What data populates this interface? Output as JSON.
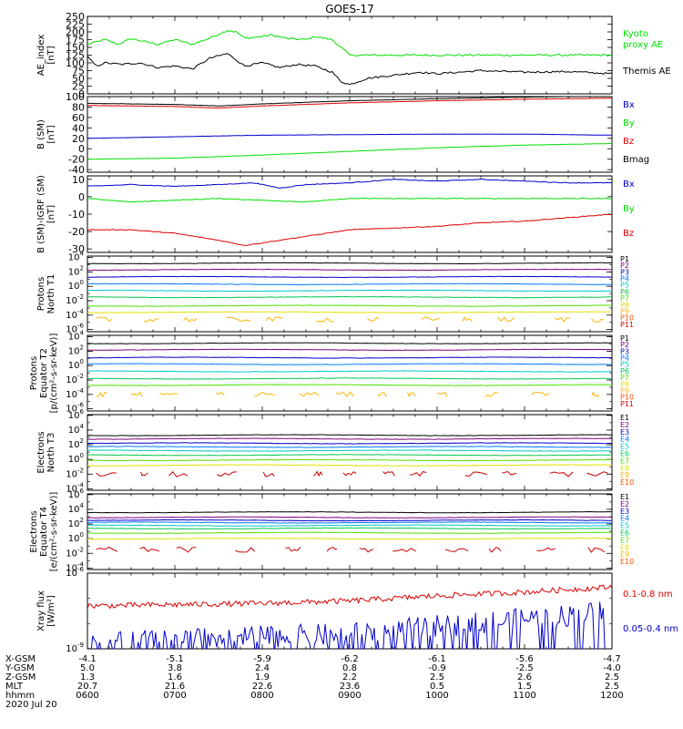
{
  "title": "GOES-17",
  "date": "2020 Jul 20",
  "colors": {
    "black": "#000000",
    "green": "#00e000",
    "blue": "#0000cc",
    "red": "#dd0000",
    "prot": [
      "#000000",
      "#800080",
      "#0000c8",
      "#0078ff",
      "#00c8c8",
      "#00c850",
      "#50e000",
      "#e0e000",
      "#ffb400",
      "#ff5000",
      "#dc0000",
      "#a00000"
    ],
    "elec": [
      "#000000",
      "#800080",
      "#0000c8",
      "#0078ff",
      "#00c8c8",
      "#00c850",
      "#50e000",
      "#e0e000",
      "#ffb400",
      "#ff5000",
      "#c80000"
    ]
  },
  "chart_data": [
    {
      "type": "line",
      "id": "ae",
      "ylabel": [
        "AE_index",
        "[nT]"
      ],
      "ylim": [
        0,
        250
      ],
      "yticks": [
        "0",
        "25",
        "50",
        "75",
        "100",
        "125",
        "150",
        "175",
        "200",
        "225",
        "250"
      ],
      "series": [
        {
          "name": "Kyoto proxy AE",
          "label": [
            "Kyoto",
            "proxy AE"
          ],
          "color": "green",
          "x": [
            6.0,
            6.2,
            6.35,
            6.5,
            6.8,
            7.0,
            7.2,
            7.4,
            7.6,
            7.7,
            7.8,
            8.0,
            8.1,
            8.3,
            8.5,
            8.6,
            8.8,
            8.9,
            9.0,
            9.5,
            10.0,
            10.5,
            11.0,
            11.5,
            12.0
          ],
          "values": [
            160,
            175,
            160,
            178,
            160,
            175,
            160,
            180,
            205,
            200,
            180,
            185,
            190,
            178,
            175,
            185,
            175,
            150,
            125,
            125,
            125,
            125,
            125,
            125,
            125
          ]
        },
        {
          "name": "Themis AE",
          "label": [
            "Themis AE"
          ],
          "color": "black",
          "x": [
            6.0,
            6.1,
            6.2,
            6.4,
            6.6,
            6.8,
            7.0,
            7.2,
            7.4,
            7.6,
            7.7,
            7.8,
            8.0,
            8.2,
            8.4,
            8.6,
            8.8,
            8.9,
            9.0,
            9.2,
            9.5,
            9.8,
            10.0,
            10.5,
            11.0,
            11.5,
            12.0
          ],
          "values": [
            120,
            90,
            100,
            95,
            100,
            85,
            90,
            80,
            115,
            130,
            110,
            90,
            100,
            85,
            95,
            90,
            70,
            40,
            30,
            50,
            60,
            70,
            65,
            75,
            70,
            72,
            65
          ]
        }
      ]
    },
    {
      "type": "line",
      "id": "bsm",
      "ylabel": [
        "B (SM)",
        "[nT]"
      ],
      "ylim": [
        -45,
        100
      ],
      "yticks": [
        "-40",
        "-20",
        "0",
        "20",
        "40",
        "60",
        "80",
        "100"
      ],
      "yticks_vals": [
        -40,
        -20,
        0,
        20,
        40,
        60,
        80,
        100
      ],
      "series": [
        {
          "name": "Bx",
          "label": [
            "Bx"
          ],
          "color": "blue",
          "x": [
            6,
            7,
            8,
            9,
            10,
            11,
            12
          ],
          "values": [
            20,
            23,
            26,
            27,
            28,
            28,
            26
          ]
        },
        {
          "name": "By",
          "label": [
            "By"
          ],
          "color": "green",
          "x": [
            6,
            7,
            8,
            9,
            10,
            11,
            12
          ],
          "values": [
            -20,
            -18,
            -12,
            -5,
            2,
            7,
            10
          ]
        },
        {
          "name": "Bz",
          "label": [
            "Bz"
          ],
          "color": "red",
          "x": [
            6,
            7,
            7.5,
            8,
            9,
            10,
            11,
            12
          ],
          "values": [
            83,
            81,
            78,
            82,
            88,
            92,
            95,
            97
          ]
        },
        {
          "name": "Bmag",
          "label": [
            "Bmag"
          ],
          "color": "black",
          "x": [
            6,
            7,
            7.5,
            8,
            9,
            10,
            11,
            12
          ],
          "values": [
            87,
            85,
            82,
            86,
            92,
            96,
            99,
            101
          ]
        }
      ]
    },
    {
      "type": "line",
      "id": "bigrf",
      "ylabel": [
        "B (SM)-IGRF (SM)",
        "[nT]"
      ],
      "ylim": [
        -32,
        12
      ],
      "yticks": [
        "-30",
        "-20",
        "-10",
        "0",
        "10"
      ],
      "yticks_vals": [
        -30,
        -20,
        -10,
        0,
        10
      ],
      "series": [
        {
          "name": "Bx",
          "label": [
            "Bx"
          ],
          "color": "blue",
          "x": [
            6,
            6.5,
            7,
            7.5,
            7.9,
            8.2,
            8.5,
            9,
            9.5,
            10,
            10.5,
            11,
            11.5,
            12
          ],
          "values": [
            6,
            7,
            6,
            7,
            8,
            5,
            7,
            8,
            10,
            9,
            10,
            9,
            8,
            8
          ]
        },
        {
          "name": "By",
          "label": [
            "By"
          ],
          "color": "green",
          "x": [
            6,
            6.5,
            7,
            7.5,
            8,
            8.5,
            9,
            10,
            11,
            12
          ],
          "values": [
            -1,
            -3,
            -2,
            -1,
            -2,
            -3,
            -1,
            -1,
            -1,
            -1
          ]
        },
        {
          "name": "Bz",
          "label": [
            "Bz"
          ],
          "color": "red",
          "x": [
            6,
            6.5,
            7,
            7.5,
            7.8,
            8.2,
            8.6,
            9,
            9.5,
            10,
            10.5,
            11,
            11.5,
            12
          ],
          "values": [
            -19,
            -19,
            -21,
            -25,
            -28,
            -25,
            -22,
            -19,
            -18,
            -17,
            -15,
            -14,
            -12,
            -10
          ]
        }
      ]
    },
    {
      "type": "line",
      "id": "protN",
      "log": true,
      "ylabel": [
        "Protons",
        "North T1"
      ],
      "ylim": [
        -6.3,
        4.2
      ],
      "ytick_exps": [
        -6,
        -4,
        -2,
        0,
        2,
        4
      ],
      "labels": [
        "P1",
        "P2",
        "P3",
        "P4",
        "P5",
        "P6",
        "P7",
        "P8",
        "P9",
        "P10",
        "P11"
      ],
      "levels": [
        3.2,
        2.3,
        1.3,
        0.3,
        -0.6,
        -1.5,
        -2.7,
        -3.6
      ],
      "gappy": [
        {
          "level": -4.6,
          "color_index": 8
        }
      ]
    },
    {
      "type": "line",
      "id": "protE",
      "log": true,
      "ylabel": [
        "Protons",
        "Equator T2",
        "[p/(cm²-s-sr-keV)]"
      ],
      "ylim": [
        -6.3,
        4.2
      ],
      "ytick_exps": [
        -6,
        -4,
        -2,
        0,
        2,
        4
      ],
      "labels": [
        "P1",
        "P2",
        "P3",
        "P4",
        "P5",
        "P6",
        "P7",
        "P8",
        "P9",
        "P10",
        "P11"
      ],
      "levels": [
        3.1,
        2.2,
        1.1,
        0.2,
        -0.8,
        -1.8,
        -2.7
      ],
      "gappy": [
        {
          "level": -4.0,
          "color_index": 8
        }
      ]
    },
    {
      "type": "line",
      "id": "elecN",
      "log": true,
      "ylabel": [
        "Electrons",
        "North T3"
      ],
      "ylim": [
        -4.2,
        6.1
      ],
      "ytick_exps": [
        -4,
        -2,
        0,
        2,
        4,
        6
      ],
      "labels": [
        "E1",
        "E2",
        "E3",
        "E4",
        "E5",
        "E6",
        "E7",
        "E8",
        "E9",
        "E10"
      ],
      "levels": [
        3.3,
        2.8,
        2.2,
        1.7,
        1.2,
        0.6,
        -0.1,
        -0.8
      ],
      "gappy": [
        {
          "level": -2.0,
          "color_index": 10
        }
      ]
    },
    {
      "type": "line",
      "id": "elecE",
      "log": true,
      "ylabel": [
        "Electrons",
        "Equator T4",
        "[e/(cm²-s-sr-keV)]"
      ],
      "ylim": [
        -4.2,
        6.1
      ],
      "ytick_exps": [
        -4,
        -2,
        0,
        2,
        4,
        6
      ],
      "labels": [
        "E1",
        "E2",
        "E3",
        "E4",
        "E5",
        "E6",
        "E7",
        "E8",
        "E9",
        "E10"
      ],
      "levels": [
        3.6,
        2.9,
        2.5,
        2.2,
        1.8,
        1.4,
        0.8,
        0.0
      ],
      "gappy": [
        {
          "level": -1.5,
          "color_index": 10
        }
      ]
    },
    {
      "type": "line",
      "id": "xray",
      "log": true,
      "ylabel": [
        "Xray flux",
        "[W/m²]"
      ],
      "ylim": [
        -9,
        -6
      ],
      "ytick_exps": [
        -9,
        -6
      ],
      "series": [
        {
          "name": "0.1-0.8 nm",
          "label": [
            "0.1-0.8 nm"
          ],
          "color": "red",
          "x": [
            6,
            7,
            8,
            9,
            10,
            11,
            12
          ],
          "values": [
            -7.3,
            -7.25,
            -7.2,
            -7.1,
            -6.9,
            -6.75,
            -6.55
          ]
        },
        {
          "name": "0.05-0.4 nm",
          "label": [
            "0.05-0.4 nm"
          ],
          "color": "blue",
          "x": [
            6,
            7,
            8,
            9,
            10,
            11,
            12
          ],
          "values": [
            -8.9,
            -8.8,
            -8.7,
            -8.6,
            -8.3,
            -8.0,
            -7.7
          ]
        }
      ]
    }
  ],
  "xaxis": {
    "range": [
      6,
      12
    ],
    "row_labels": [
      "X-GSM",
      "Y-GSM",
      "Z-GSM",
      "MLT",
      "hhmm"
    ],
    "rows": [
      [
        "-4.1",
        "-5.1",
        "-5.9",
        "-6.2",
        "-6.1",
        "-5.6",
        "-4.7"
      ],
      [
        "5.0",
        "3.8",
        "2.4",
        "0.8",
        "-0.9",
        "-2.5",
        "-4.0"
      ],
      [
        "1.3",
        "1.6",
        "1.9",
        "2.2",
        "2.5",
        "2.6",
        "2.5"
      ],
      [
        "20.7",
        "21.6",
        "22.6",
        "23.6",
        "0.5",
        "1.5",
        "2.5"
      ],
      [
        "0600",
        "0700",
        "0800",
        "0900",
        "1000",
        "1100",
        "1200"
      ]
    ]
  }
}
